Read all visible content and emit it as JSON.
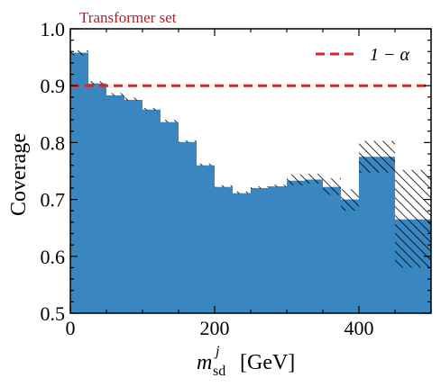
{
  "chart_data": {
    "type": "bar",
    "title": "Transformer set",
    "title_color": "#a4262c",
    "xlabel_main": "m",
    "xlabel_sup": "j",
    "xlabel_sub": "sd",
    "xlabel_unit": "[GeV]",
    "ylabel": "Coverage",
    "xlim": [
      0,
      500
    ],
    "ylim": [
      0.5,
      1.0
    ],
    "xticks": [
      0,
      200,
      400
    ],
    "xtick_labels": [
      "0",
      "200",
      "400"
    ],
    "yticks": [
      0.5,
      0.6,
      0.7,
      0.8,
      0.9,
      1.0
    ],
    "ytick_labels": [
      "0.5",
      "0.6",
      "0.7",
      "0.8",
      "0.9",
      "1.0"
    ],
    "bar_color": "#3a86c0",
    "bins": [
      {
        "x0": 0,
        "x1": 25,
        "value": 0.958,
        "lo": 0.953,
        "hi": 0.962
      },
      {
        "x0": 25,
        "x1": 50,
        "value": 0.904,
        "lo": 0.902,
        "hi": 0.908
      },
      {
        "x0": 50,
        "x1": 75,
        "value": 0.883,
        "lo": 0.882,
        "hi": 0.887
      },
      {
        "x0": 75,
        "x1": 100,
        "value": 0.875,
        "lo": 0.874,
        "hi": 0.879
      },
      {
        "x0": 100,
        "x1": 125,
        "value": 0.858,
        "lo": 0.857,
        "hi": 0.861
      },
      {
        "x0": 125,
        "x1": 150,
        "value": 0.836,
        "lo": 0.835,
        "hi": 0.84
      },
      {
        "x0": 150,
        "x1": 175,
        "value": 0.801,
        "lo": 0.8,
        "hi": 0.804
      },
      {
        "x0": 175,
        "x1": 200,
        "value": 0.76,
        "lo": 0.759,
        "hi": 0.763
      },
      {
        "x0": 200,
        "x1": 225,
        "value": 0.722,
        "lo": 0.721,
        "hi": 0.725
      },
      {
        "x0": 225,
        "x1": 250,
        "value": 0.711,
        "lo": 0.71,
        "hi": 0.714
      },
      {
        "x0": 250,
        "x1": 275,
        "value": 0.72,
        "lo": 0.719,
        "hi": 0.723
      },
      {
        "x0": 275,
        "x1": 300,
        "value": 0.723,
        "lo": 0.722,
        "hi": 0.726
      },
      {
        "x0": 300,
        "x1": 325,
        "value": 0.733,
        "lo": 0.725,
        "hi": 0.744
      },
      {
        "x0": 325,
        "x1": 350,
        "value": 0.735,
        "lo": 0.728,
        "hi": 0.745
      },
      {
        "x0": 350,
        "x1": 375,
        "value": 0.722,
        "lo": 0.708,
        "hi": 0.737
      },
      {
        "x0": 375,
        "x1": 400,
        "value": 0.7,
        "lo": 0.68,
        "hi": 0.718
      },
      {
        "x0": 400,
        "x1": 450,
        "value": 0.775,
        "lo": 0.747,
        "hi": 0.803
      },
      {
        "x0": 450,
        "x1": 500,
        "value": 0.665,
        "lo": 0.58,
        "hi": 0.752
      }
    ],
    "reference_line": {
      "y": 0.9,
      "color": "#d62728",
      "style": "dashed"
    },
    "legend": {
      "label": "1 − α",
      "placement": "top-right"
    },
    "grid": false
  }
}
